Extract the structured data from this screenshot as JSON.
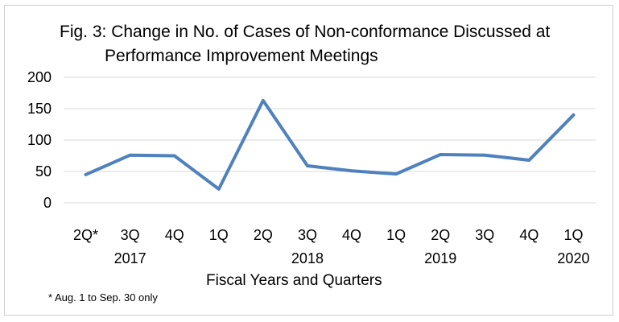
{
  "chart_data": {
    "type": "line",
    "title_line1": "Fig. 3: Change in No. of Cases of Non-conformance Discussed at",
    "title_line2": "Performance Improvement Meetings",
    "xlabel": "Fiscal Years and Quarters",
    "ylabel": "",
    "ylim": [
      0,
      200
    ],
    "yticks": [
      "0",
      "50",
      "100",
      "150",
      "200"
    ],
    "grid": true,
    "categories": [
      "2Q*",
      "3Q",
      "4Q",
      "1Q",
      "2Q",
      "3Q",
      "4Q",
      "1Q",
      "2Q",
      "3Q",
      "4Q",
      "1Q"
    ],
    "year_labels": [
      {
        "label": "2017",
        "category_index": 1
      },
      {
        "label": "2018",
        "category_index": 5
      },
      {
        "label": "2019",
        "category_index": 8
      },
      {
        "label": "2020",
        "category_index": 11
      }
    ],
    "series": [
      {
        "values": [
          45,
          76,
          75,
          22,
          163,
          59,
          51,
          46,
          77,
          76,
          68,
          140
        ]
      }
    ],
    "color": "#4f81bd",
    "gridline_color": "#d9d9d9"
  },
  "footnote": "* Aug. 1 to Sep. 30 only"
}
